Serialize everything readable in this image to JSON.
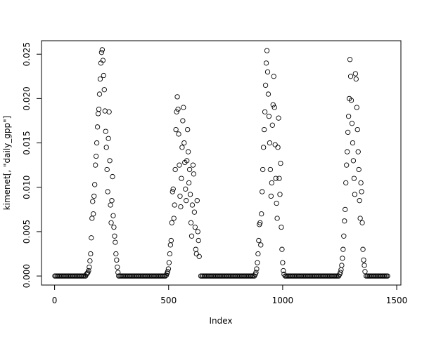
{
  "chart_data": {
    "type": "scatter",
    "x_label": "Index",
    "y_label": "kimenet[, \"daily_gpp\"]",
    "color": "#000000",
    "xlim": [
      -57.4,
      1518.4
    ],
    "ylim": [
      -0.00102,
      0.02652
    ],
    "xticks": [
      0,
      500,
      1000,
      1500
    ],
    "yticks": [
      {
        "value": 0,
        "label": "0.000"
      },
      {
        "value": 0.005,
        "label": "0.005"
      },
      {
        "value": 0.01,
        "label": "0.010"
      },
      {
        "value": 0.015,
        "label": "0.015"
      },
      {
        "value": 0.02,
        "label": "0.020"
      },
      {
        "value": 0.025,
        "label": "0.025"
      }
    ],
    "x": [
      1,
      6,
      11,
      16,
      21,
      26,
      31,
      36,
      41,
      46,
      51,
      56,
      61,
      66,
      71,
      76,
      81,
      86,
      91,
      96,
      101,
      106,
      111,
      116,
      121,
      126,
      131,
      136,
      140,
      143,
      146,
      149,
      152,
      155,
      158,
      161,
      164,
      167,
      170,
      173,
      176,
      179,
      182,
      185,
      188,
      191,
      194,
      197,
      200,
      203,
      206,
      209,
      212,
      215,
      218,
      221,
      224,
      227,
      230,
      233,
      236,
      239,
      242,
      245,
      248,
      251,
      254,
      257,
      260,
      263,
      266,
      269,
      272,
      275,
      278,
      281,
      286,
      291,
      296,
      301,
      306,
      311,
      316,
      321,
      326,
      331,
      336,
      341,
      346,
      351,
      356,
      361,
      366,
      371,
      376,
      381,
      386,
      391,
      396,
      401,
      406,
      411,
      416,
      421,
      426,
      431,
      436,
      441,
      446,
      451,
      456,
      461,
      466,
      471,
      476,
      481,
      486,
      490,
      493,
      496,
      499,
      502,
      505,
      508,
      511,
      514,
      517,
      520,
      523,
      526,
      529,
      532,
      535,
      538,
      541,
      544,
      547,
      550,
      553,
      556,
      559,
      562,
      565,
      568,
      571,
      574,
      577,
      580,
      583,
      586,
      589,
      592,
      595,
      598,
      601,
      604,
      607,
      610,
      613,
      616,
      619,
      622,
      625,
      628,
      631,
      634,
      641,
      646,
      651,
      656,
      661,
      666,
      671,
      676,
      681,
      686,
      691,
      696,
      701,
      706,
      711,
      716,
      721,
      726,
      731,
      736,
      741,
      746,
      751,
      756,
      761,
      766,
      771,
      776,
      781,
      786,
      791,
      796,
      801,
      806,
      811,
      816,
      821,
      826,
      831,
      836,
      841,
      846,
      851,
      856,
      861,
      866,
      871,
      876,
      880,
      883,
      886,
      889,
      892,
      895,
      898,
      901,
      904,
      907,
      910,
      913,
      916,
      919,
      922,
      925,
      928,
      931,
      934,
      937,
      940,
      943,
      946,
      949,
      952,
      955,
      958,
      961,
      964,
      967,
      970,
      973,
      976,
      979,
      982,
      985,
      988,
      991,
      994,
      997,
      1000,
      1003,
      1006,
      1011,
      1016,
      1021,
      1026,
      1031,
      1036,
      1041,
      1046,
      1051,
      1056,
      1061,
      1066,
      1071,
      1076,
      1081,
      1086,
      1091,
      1096,
      1101,
      1106,
      1111,
      1116,
      1121,
      1126,
      1131,
      1136,
      1141,
      1146,
      1151,
      1156,
      1161,
      1166,
      1171,
      1176,
      1181,
      1186,
      1191,
      1196,
      1201,
      1206,
      1211,
      1216,
      1221,
      1226,
      1231,
      1236,
      1241,
      1246,
      1250,
      1253,
      1256,
      1259,
      1262,
      1265,
      1268,
      1271,
      1274,
      1277,
      1280,
      1283,
      1286,
      1289,
      1292,
      1295,
      1298,
      1301,
      1304,
      1307,
      1310,
      1313,
      1316,
      1319,
      1322,
      1325,
      1328,
      1331,
      1334,
      1337,
      1340,
      1343,
      1346,
      1349,
      1352,
      1355,
      1358,
      1361,
      1366,
      1371,
      1376,
      1381,
      1386,
      1391,
      1396,
      1401,
      1406,
      1411,
      1416,
      1421,
      1426,
      1431,
      1436,
      1441,
      1446,
      1451,
      1456,
      1460
    ],
    "values": [
      0,
      0,
      0,
      0,
      0,
      0,
      0,
      0,
      0,
      0,
      0,
      0,
      0,
      0,
      0,
      0,
      0,
      0,
      0,
      0,
      0,
      0,
      0,
      0,
      0,
      0,
      0,
      0,
      0.0002,
      0.0003,
      0.0004,
      0.0006,
      0.001,
      0.0017,
      0.0025,
      0.0043,
      0.0065,
      0.0084,
      0.007,
      0.009,
      0.0103,
      0.0125,
      0.0135,
      0.015,
      0.0168,
      0.0183,
      0.0188,
      0.0205,
      0.0222,
      0.024,
      0.0252,
      0.0255,
      0.0243,
      0.0226,
      0.021,
      0.0186,
      0.0163,
      0.0145,
      0.012,
      0.0095,
      0.0155,
      0.0185,
      0.013,
      0.008,
      0.006,
      0.0085,
      0.0112,
      0.0068,
      0.0055,
      0.0045,
      0.0038,
      0.0025,
      0.0018,
      0.001,
      0.0004,
      0,
      0,
      0,
      0,
      0,
      0,
      0,
      0,
      0,
      0,
      0,
      0,
      0,
      0,
      0,
      0,
      0,
      0,
      0,
      0,
      0,
      0,
      0,
      0,
      0,
      0,
      0,
      0,
      0,
      0,
      0,
      0,
      0,
      0,
      0,
      0,
      0,
      0,
      0,
      0,
      0,
      0,
      0.0001,
      0.0003,
      0.0005,
      0.0008,
      0.0015,
      0.0025,
      0.0035,
      0.004,
      0.006,
      0.0095,
      0.0098,
      0.0065,
      0.008,
      0.012,
      0.0165,
      0.0185,
      0.0202,
      0.0188,
      0.016,
      0.0125,
      0.009,
      0.0078,
      0.011,
      0.0145,
      0.0175,
      0.019,
      0.015,
      0.0128,
      0.0098,
      0.0085,
      0.013,
      0.0165,
      0.014,
      0.0105,
      0.012,
      0.0092,
      0.006,
      0.0045,
      0.008,
      0.0125,
      0.0115,
      0.0072,
      0.0055,
      0.003,
      0.0025,
      0.0085,
      0.005,
      0.004,
      0.0022,
      0,
      0,
      0,
      0,
      0,
      0,
      0,
      0,
      0,
      0,
      0,
      0,
      0,
      0,
      0,
      0,
      0,
      0,
      0,
      0,
      0,
      0,
      0,
      0,
      0,
      0,
      0,
      0,
      0,
      0,
      0,
      0,
      0,
      0,
      0,
      0,
      0,
      0,
      0,
      0,
      0,
      0,
      0,
      0,
      0,
      0,
      0,
      0,
      0.0002,
      0.0004,
      0.0008,
      0.0015,
      0.0025,
      0.004,
      0.0058,
      0.006,
      0.0035,
      0.007,
      0.0095,
      0.012,
      0.0145,
      0.0165,
      0.0185,
      0.0215,
      0.024,
      0.0254,
      0.023,
      0.0205,
      0.018,
      0.015,
      0.012,
      0.009,
      0.0105,
      0.017,
      0.0193,
      0.0225,
      0.019,
      0.0148,
      0.011,
      0.0082,
      0.0065,
      0.0145,
      0.0178,
      0.011,
      0.0092,
      0.0127,
      0.0055,
      0.003,
      0.0015,
      0.0006,
      0.0002,
      0,
      0,
      0,
      0,
      0,
      0,
      0,
      0,
      0,
      0,
      0,
      0,
      0,
      0,
      0,
      0,
      0,
      0,
      0,
      0,
      0,
      0,
      0,
      0,
      0,
      0,
      0,
      0,
      0,
      0,
      0,
      0,
      0,
      0,
      0,
      0,
      0,
      0,
      0,
      0,
      0,
      0,
      0,
      0,
      0,
      0,
      0,
      0,
      0.0002,
      0.0004,
      0.0007,
      0.0012,
      0.002,
      0.003,
      0.0045,
      0.0062,
      0.0075,
      0.0105,
      0.0125,
      0.014,
      0.0162,
      0.018,
      0.02,
      0.0244,
      0.0225,
      0.0198,
      0.0172,
      0.015,
      0.013,
      0.011,
      0.0092,
      0.0228,
      0.0222,
      0.019,
      0.0165,
      0.014,
      0.012,
      0.0085,
      0.0065,
      0.0105,
      0.0095,
      0.006,
      0.003,
      0.0018,
      0.0012,
      0.0005,
      0,
      0,
      0,
      0,
      0,
      0,
      0,
      0,
      0,
      0,
      0,
      0,
      0,
      0,
      0,
      0,
      0,
      0,
      0,
      0
    ]
  }
}
